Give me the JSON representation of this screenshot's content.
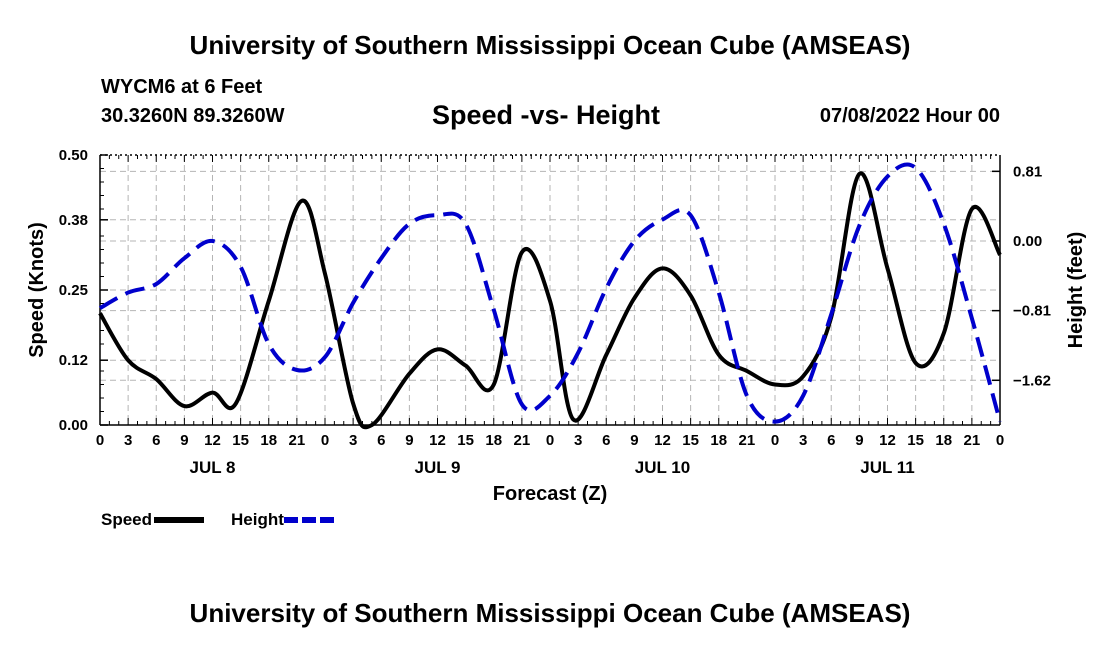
{
  "header": {
    "title": "University of Southern Mississippi Ocean Cube (AMSEAS)",
    "station": "WYCM6 at 6 Feet",
    "coords": "30.3260N  89.3260W",
    "subtitle": "Speed -vs- Height",
    "datetime": "07/08/2022 Hour 00"
  },
  "footer": {
    "title": "University of Southern Mississippi Ocean Cube (AMSEAS)"
  },
  "legend": {
    "speed_label": "Speed",
    "height_label": "Height",
    "speed_color": "#000000",
    "height_color": "#0000cc"
  },
  "chart_data": {
    "type": "line",
    "title": "Speed -vs- Height",
    "xlabel": "Forecast (Z)",
    "ylabel": "Speed (Knots)",
    "y2label": "Height (feet)",
    "x_range_hours": [
      0,
      96
    ],
    "ylim": [
      0,
      0.5
    ],
    "y2lim": [
      -2.14,
      1.0
    ],
    "y_ticks": [
      "0.00",
      "0.12",
      "0.25",
      "0.38",
      "0.50"
    ],
    "y2_ticks": [
      {
        "value": 0.81,
        "label": "0.81"
      },
      {
        "value": 0.0,
        "label": "0.00"
      },
      {
        "value": -0.81,
        "label": "−0.81"
      },
      {
        "value": -1.62,
        "label": "−1.62"
      }
    ],
    "x_tick_labels": [
      "0",
      "3",
      "6",
      "9",
      "12",
      "15",
      "18",
      "21",
      "0",
      "3",
      "6",
      "9",
      "12",
      "15",
      "18",
      "21",
      "0",
      "3",
      "6",
      "9",
      "12",
      "15",
      "18",
      "21",
      "0",
      "3",
      "6",
      "9",
      "12",
      "15",
      "18",
      "21",
      "0"
    ],
    "day_labels": [
      {
        "hour": 12,
        "label": "JUL 8"
      },
      {
        "hour": 36,
        "label": "JUL 9"
      },
      {
        "hour": 60,
        "label": "JUL 10"
      },
      {
        "hour": 84,
        "label": "JUL 11"
      }
    ],
    "grid": true,
    "series": [
      {
        "name": "Speed",
        "axis": "left",
        "style": "solid",
        "color": "#000000",
        "points": [
          [
            0,
            0.207
          ],
          [
            3,
            0.12
          ],
          [
            6,
            0.085
          ],
          [
            9,
            0.035
          ],
          [
            12,
            0.06
          ],
          [
            14.5,
            0.04
          ],
          [
            18,
            0.23
          ],
          [
            21.5,
            0.415
          ],
          [
            24,
            0.28
          ],
          [
            27,
            0.04
          ],
          [
            29,
            0.0
          ],
          [
            33,
            0.095
          ],
          [
            36,
            0.14
          ],
          [
            39,
            0.11
          ],
          [
            42,
            0.075
          ],
          [
            45,
            0.32
          ],
          [
            48,
            0.23
          ],
          [
            50.5,
            0.01
          ],
          [
            54,
            0.13
          ],
          [
            57,
            0.235
          ],
          [
            60,
            0.29
          ],
          [
            63,
            0.24
          ],
          [
            66,
            0.13
          ],
          [
            69,
            0.1
          ],
          [
            72,
            0.075
          ],
          [
            75,
            0.09
          ],
          [
            78,
            0.2
          ],
          [
            81,
            0.465
          ],
          [
            84,
            0.29
          ],
          [
            87,
            0.115
          ],
          [
            90,
            0.17
          ],
          [
            93,
            0.4
          ],
          [
            96,
            0.315
          ]
        ]
      },
      {
        "name": "Height",
        "axis": "right",
        "style": "dashed",
        "color": "#0000cc",
        "points": [
          [
            0,
            -0.78
          ],
          [
            3,
            -0.6
          ],
          [
            6,
            -0.5
          ],
          [
            9,
            -0.2
          ],
          [
            12,
            0.0
          ],
          [
            15,
            -0.3
          ],
          [
            18,
            -1.2
          ],
          [
            21,
            -1.5
          ],
          [
            24,
            -1.35
          ],
          [
            27,
            -0.72
          ],
          [
            30,
            -0.2
          ],
          [
            33,
            0.2
          ],
          [
            36,
            0.3
          ],
          [
            39,
            0.2
          ],
          [
            42,
            -0.8
          ],
          [
            45,
            -1.9
          ],
          [
            48,
            -1.8
          ],
          [
            51,
            -1.3
          ],
          [
            54,
            -0.55
          ],
          [
            57,
            0.0
          ],
          [
            60,
            0.25
          ],
          [
            63,
            0.3
          ],
          [
            66,
            -0.6
          ],
          [
            69,
            -1.8
          ],
          [
            72,
            -2.1
          ],
          [
            75,
            -1.8
          ],
          [
            78,
            -0.85
          ],
          [
            81,
            0.18
          ],
          [
            84,
            0.75
          ],
          [
            87,
            0.85
          ],
          [
            90,
            0.2
          ],
          [
            93,
            -0.9
          ],
          [
            96,
            -2.1
          ]
        ]
      }
    ]
  }
}
